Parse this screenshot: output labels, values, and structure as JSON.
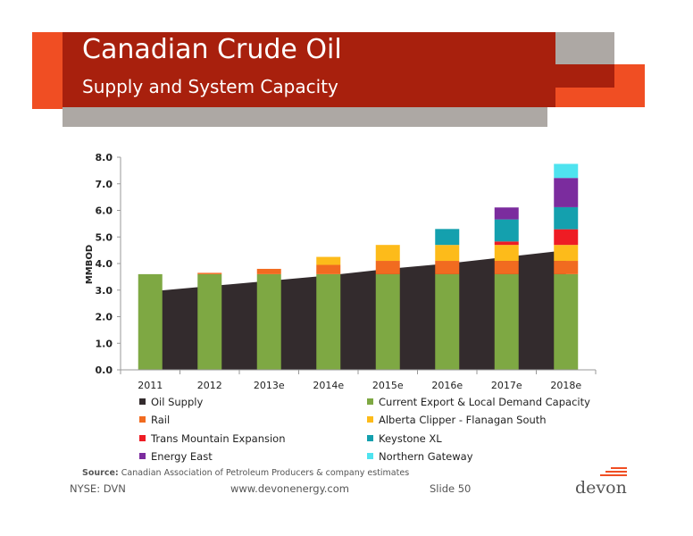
{
  "header": {
    "title": "Canadian Crude Oil",
    "subtitle": "Supply and System Capacity"
  },
  "colors": {
    "header_red": "#a8200d",
    "accent_orange": "#f04e23",
    "header_gray": "#ada8a4"
  },
  "chart_data": {
    "type": "bar",
    "subtype": "stacked bar over area",
    "ylabel": "MMBOD",
    "ylim": [
      0,
      8
    ],
    "yticks": [
      "0.0",
      "1.0",
      "2.0",
      "3.0",
      "4.0",
      "5.0",
      "6.0",
      "7.0",
      "8.0"
    ],
    "categories": [
      "2011",
      "2012",
      "2013e",
      "2014e",
      "2015e",
      "2016e",
      "2017e",
      "2018e"
    ],
    "area": {
      "name": "Oil Supply",
      "color": "#332b2d",
      "values": [
        2.95,
        3.15,
        3.35,
        3.55,
        3.8,
        4.0,
        4.25,
        4.5
      ]
    },
    "series": [
      {
        "name": "Current Export & Local Demand Capacity",
        "color": "#7ea843",
        "values": [
          3.6,
          3.6,
          3.6,
          3.6,
          3.6,
          3.6,
          3.6,
          3.6
        ]
      },
      {
        "name": "Rail",
        "color": "#f16b20",
        "values": [
          0,
          0.05,
          0.2,
          0.35,
          0.5,
          0.5,
          0.5,
          0.5
        ]
      },
      {
        "name": "Alberta Clipper - Flanagan South",
        "color": "#fdbb1a",
        "values": [
          0,
          0,
          0,
          0.3,
          0.6,
          0.6,
          0.6,
          0.6
        ]
      },
      {
        "name": "Trans Mountain Expansion",
        "color": "#ee1c24",
        "values": [
          0,
          0,
          0,
          0,
          0,
          0,
          0.13,
          0.59
        ]
      },
      {
        "name": "Keystone XL",
        "color": "#14a0ae",
        "values": [
          0,
          0,
          0,
          0,
          0,
          0.6,
          0.83,
          0.83
        ]
      },
      {
        "name": "Energy East",
        "color": "#7b2c9e",
        "values": [
          0,
          0,
          0,
          0,
          0,
          0,
          0.45,
          1.1
        ]
      },
      {
        "name": "Northern Gateway",
        "color": "#4fe3ef",
        "values": [
          0,
          0,
          0,
          0,
          0,
          0,
          0,
          0.53
        ]
      }
    ]
  },
  "source": {
    "label": "Source:",
    "text": "Canadian Association of Petroleum Producers & company estimates"
  },
  "footer": {
    "ticker": "NYSE: DVN",
    "website": "www.devonenergy.com",
    "slide": "Slide 50",
    "logo": "devon"
  }
}
